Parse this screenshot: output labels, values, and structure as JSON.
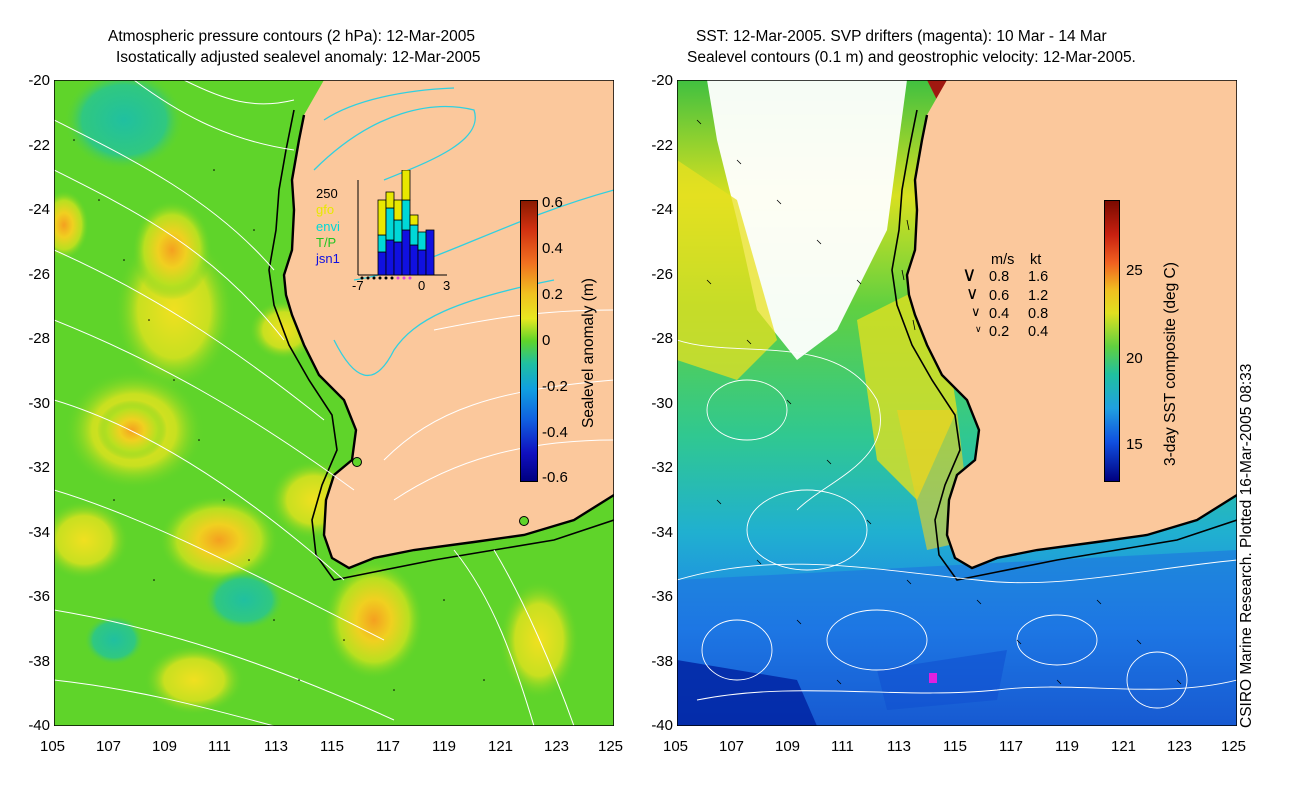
{
  "left_panel": {
    "title_line1": "Atmospheric pressure contours (2 hPa): 12-Mar-2005",
    "title_line2": "Isostatically adjusted sealevel anomaly: 12-Mar-2005",
    "colorbar": {
      "label": "Sealevel anomaly (m)",
      "ticks": [
        "0.6",
        "0.4",
        "0.2",
        "0",
        "-0.2",
        "-0.4",
        "-0.6"
      ]
    },
    "inset": {
      "y_tick": "250",
      "x_ticks": [
        "-7",
        "0",
        "3"
      ],
      "legend": [
        {
          "label": "gfo",
          "color": "#e8e800"
        },
        {
          "label": "envi",
          "color": "#00d8d8"
        },
        {
          "label": "T/P",
          "color": "#22c422"
        },
        {
          "label": "jsn1",
          "color": "#1010e0"
        }
      ]
    }
  },
  "right_panel": {
    "title_line1": "SST: 12-Mar-2005. SVP drifters (magenta): 10 Mar - 14 Mar",
    "title_line2": "Sealevel contours (0.1 m) and geostrophic velocity: 12-Mar-2005.",
    "colorbar": {
      "label": "3-day SST composite (deg C)",
      "ticks": [
        "25",
        "20",
        "15"
      ]
    },
    "velocity_key": {
      "header_ms": "m/s",
      "header_kt": "kt",
      "rows": [
        {
          "ms": "0.8",
          "kt": "1.6"
        },
        {
          "ms": "0.6",
          "kt": "1.2"
        },
        {
          "ms": "0.4",
          "kt": "0.8"
        },
        {
          "ms": "0.2",
          "kt": "0.4"
        }
      ]
    }
  },
  "axes": {
    "x_ticks": [
      "105",
      "107",
      "109",
      "111",
      "113",
      "115",
      "117",
      "119",
      "121",
      "123",
      "125"
    ],
    "y_ticks": [
      "-20",
      "-22",
      "-24",
      "-26",
      "-28",
      "-30",
      "-32",
      "-34",
      "-36",
      "-38",
      "-40"
    ]
  },
  "credit": "CSIRO Marine Research. Plotted 16-Mar-2005 08:33",
  "colors": {
    "land": "#fbc89c",
    "anomaly_bg": "#5fd42a",
    "sst_warm": "#e0e020",
    "sst_cool": "#1e90e8"
  }
}
